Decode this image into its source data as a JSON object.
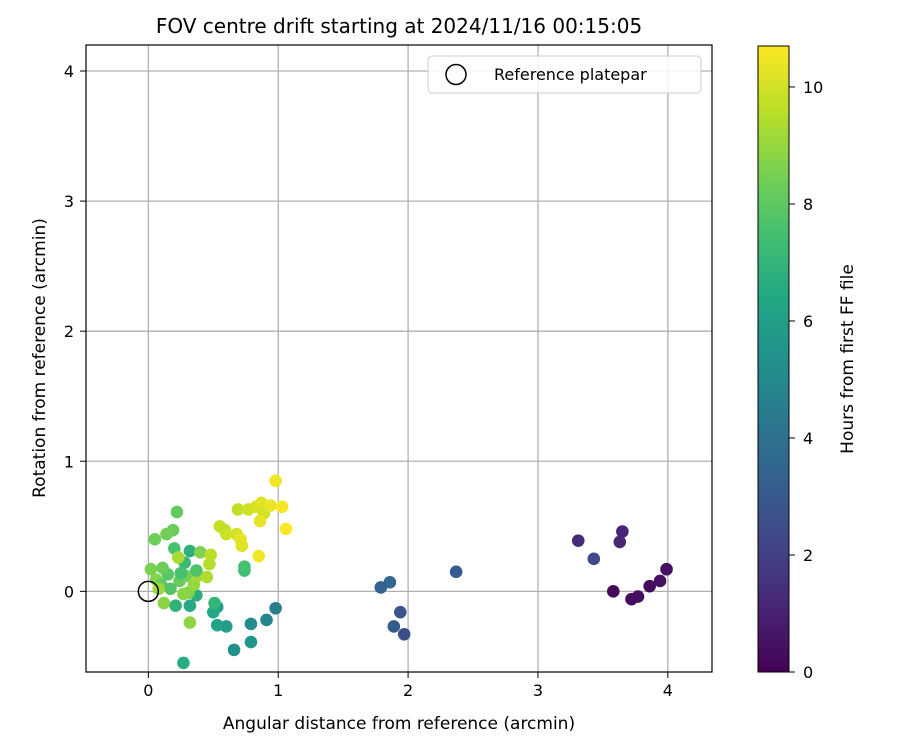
{
  "chart_data": {
    "type": "scatter",
    "title": "FOV centre drift starting at 2024/11/16 00:15:05",
    "xlabel": "Angular distance from reference (arcmin)",
    "ylabel": "Rotation from reference (arcmin)",
    "xlim": [
      -0.48,
      4.34
    ],
    "ylim": [
      -0.62,
      4.2
    ],
    "xticks": [
      0,
      1,
      2,
      3,
      4
    ],
    "yticks": [
      0,
      1,
      2,
      3,
      4
    ],
    "grid": true,
    "legend": {
      "placement": "upper-right",
      "entries": [
        "Reference platepar"
      ]
    },
    "reference_point": {
      "x": 0,
      "y": 0,
      "label": "Reference platepar"
    },
    "colorbar": {
      "label": "Hours from first FF file",
      "min": 0,
      "max": 10.7,
      "ticks": [
        0,
        2,
        4,
        6,
        8,
        10
      ],
      "colormap": "viridis"
    },
    "points": [
      {
        "x": 3.58,
        "y": 0.0,
        "c": 0.2
      },
      {
        "x": 3.72,
        "y": -0.06,
        "c": 0.3
      },
      {
        "x": 3.77,
        "y": -0.04,
        "c": 0.4
      },
      {
        "x": 3.86,
        "y": 0.04,
        "c": 0.3
      },
      {
        "x": 3.94,
        "y": 0.08,
        "c": 0.5
      },
      {
        "x": 3.99,
        "y": 0.17,
        "c": 0.4
      },
      {
        "x": 3.65,
        "y": 0.46,
        "c": 1.1
      },
      {
        "x": 3.63,
        "y": 0.38,
        "c": 1.2
      },
      {
        "x": 3.31,
        "y": 0.39,
        "c": 1.3
      },
      {
        "x": 3.43,
        "y": 0.25,
        "c": 2.3
      },
      {
        "x": 2.37,
        "y": 0.15,
        "c": 3.0
      },
      {
        "x": 1.97,
        "y": -0.33,
        "c": 2.5
      },
      {
        "x": 1.94,
        "y": -0.16,
        "c": 2.8
      },
      {
        "x": 1.89,
        "y": -0.27,
        "c": 3.1
      },
      {
        "x": 1.86,
        "y": 0.07,
        "c": 3.6
      },
      {
        "x": 1.79,
        "y": 0.03,
        "c": 3.3
      },
      {
        "x": 0.98,
        "y": -0.13,
        "c": 4.6
      },
      {
        "x": 0.91,
        "y": -0.22,
        "c": 4.8
      },
      {
        "x": 0.79,
        "y": -0.25,
        "c": 5.2
      },
      {
        "x": 0.79,
        "y": -0.39,
        "c": 5.5
      },
      {
        "x": 0.66,
        "y": -0.45,
        "c": 5.3
      },
      {
        "x": 0.6,
        "y": -0.27,
        "c": 5.9
      },
      {
        "x": 0.53,
        "y": -0.26,
        "c": 6.2
      },
      {
        "x": 0.53,
        "y": -0.12,
        "c": 5.8
      },
      {
        "x": 0.5,
        "y": -0.16,
        "c": 6.4
      },
      {
        "x": 0.51,
        "y": -0.09,
        "c": 7.0
      },
      {
        "x": 0.27,
        "y": -0.55,
        "c": 6.6
      },
      {
        "x": 0.37,
        "y": -0.03,
        "c": 6.7
      },
      {
        "x": 0.32,
        "y": -0.11,
        "c": 6.5
      },
      {
        "x": 0.21,
        "y": -0.11,
        "c": 6.9
      },
      {
        "x": 0.74,
        "y": 0.16,
        "c": 7.3
      },
      {
        "x": 0.74,
        "y": 0.19,
        "c": 7.5
      },
      {
        "x": 0.32,
        "y": 0.31,
        "c": 6.8
      },
      {
        "x": 0.28,
        "y": 0.22,
        "c": 7.2
      },
      {
        "x": 0.2,
        "y": 0.33,
        "c": 7.6
      },
      {
        "x": 0.22,
        "y": 0.61,
        "c": 8.1
      },
      {
        "x": 0.19,
        "y": 0.47,
        "c": 8.2
      },
      {
        "x": 0.14,
        "y": 0.44,
        "c": 8.4
      },
      {
        "x": 0.05,
        "y": 0.4,
        "c": 8.3
      },
      {
        "x": 0.4,
        "y": 0.3,
        "c": 8.6
      },
      {
        "x": 0.32,
        "y": -0.24,
        "c": 8.9
      },
      {
        "x": 0.12,
        "y": -0.09,
        "c": 8.8
      },
      {
        "x": 0.02,
        "y": 0.17,
        "c": 8.5
      },
      {
        "x": 0.06,
        "y": 0.09,
        "c": 8.7
      },
      {
        "x": 0.1,
        "y": 0.05,
        "c": 8.0
      },
      {
        "x": 0.15,
        "y": 0.13,
        "c": 7.9
      },
      {
        "x": 0.17,
        "y": 0.02,
        "c": 7.8
      },
      {
        "x": 0.24,
        "y": 0.08,
        "c": 8.2
      },
      {
        "x": 0.29,
        "y": 0.12,
        "c": 8.4
      },
      {
        "x": 0.31,
        "y": -0.01,
        "c": 8.6
      },
      {
        "x": 0.27,
        "y": -0.02,
        "c": 8.8
      },
      {
        "x": 0.35,
        "y": 0.05,
        "c": 9.0
      },
      {
        "x": 0.38,
        "y": 0.12,
        "c": 9.2
      },
      {
        "x": 0.45,
        "y": 0.11,
        "c": 9.4
      },
      {
        "x": 0.47,
        "y": 0.21,
        "c": 9.5
      },
      {
        "x": 0.48,
        "y": 0.28,
        "c": 9.6
      },
      {
        "x": 0.23,
        "y": 0.26,
        "c": 9.3
      },
      {
        "x": 0.08,
        "y": 0.02,
        "c": 9.1
      },
      {
        "x": 0.11,
        "y": 0.18,
        "c": 8.3
      },
      {
        "x": 0.37,
        "y": 0.16,
        "c": 7.7
      },
      {
        "x": 0.25,
        "y": 0.14,
        "c": 7.5
      },
      {
        "x": 0.55,
        "y": 0.5,
        "c": 9.8
      },
      {
        "x": 0.59,
        "y": 0.47,
        "c": 9.6
      },
      {
        "x": 0.6,
        "y": 0.44,
        "c": 9.9
      },
      {
        "x": 0.68,
        "y": 0.44,
        "c": 10.0
      },
      {
        "x": 0.71,
        "y": 0.4,
        "c": 10.3
      },
      {
        "x": 0.72,
        "y": 0.35,
        "c": 10.2
      },
      {
        "x": 0.69,
        "y": 0.63,
        "c": 9.7
      },
      {
        "x": 0.77,
        "y": 0.63,
        "c": 9.9
      },
      {
        "x": 0.83,
        "y": 0.65,
        "c": 10.1
      },
      {
        "x": 0.87,
        "y": 0.68,
        "c": 10.2
      },
      {
        "x": 0.89,
        "y": 0.6,
        "c": 10.0
      },
      {
        "x": 0.86,
        "y": 0.54,
        "c": 10.3
      },
      {
        "x": 0.94,
        "y": 0.66,
        "c": 10.4
      },
      {
        "x": 0.98,
        "y": 0.85,
        "c": 10.5
      },
      {
        "x": 1.03,
        "y": 0.65,
        "c": 10.6
      },
      {
        "x": 1.06,
        "y": 0.48,
        "c": 10.7
      },
      {
        "x": 0.85,
        "y": 0.27,
        "c": 10.5
      }
    ]
  }
}
